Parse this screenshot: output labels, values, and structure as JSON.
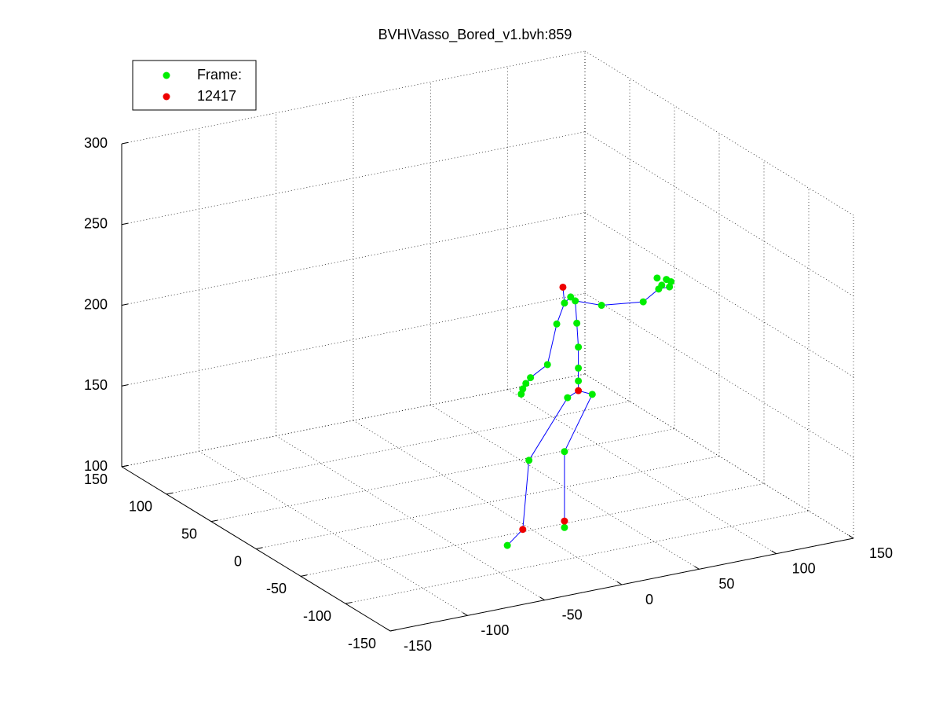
{
  "chart_data": {
    "type": "scatter3d",
    "title": "BVH\\Vasso_Bored_v1.bvh:859",
    "xlim": [
      -150,
      150
    ],
    "xticks": [
      -150,
      -100,
      -50,
      0,
      50,
      100,
      150
    ],
    "ylim": [
      -150,
      150
    ],
    "yticks": [
      -150,
      -100,
      -50,
      0,
      50,
      100,
      150
    ],
    "zlim": [
      100,
      300
    ],
    "zticks": [
      100,
      150,
      200,
      250,
      300
    ],
    "grid": true,
    "legend": "upper left",
    "series": [
      {
        "name": "Frame:",
        "color": "#00ee00",
        "x": [
          15,
          19,
          22,
          39,
          66,
          76,
          75,
          81,
          84,
          83,
          78,
          10,
          4,
          -7,
          -10,
          -12,
          -13,
          23,
          24,
          24,
          24,
          33,
          17,
          -8,
          15,
          -22,
          15
        ],
        "y": [
          -60,
          -60,
          -60,
          -60,
          -60,
          -60,
          -60,
          -60,
          -60,
          -60,
          -60,
          -60,
          -60,
          -60,
          -60,
          -60,
          -60,
          -60,
          -60,
          -60,
          -60,
          -60,
          -60,
          -60,
          -60,
          -60,
          -60
        ],
        "z": [
          241,
          244,
          241,
          235,
          232,
          238,
          245,
          243,
          241,
          238,
          240,
          229,
          205,
          199,
          196,
          193,
          190,
          227,
          212,
          199,
          191,
          181,
          182,
          148,
          149,
          98,
          102
        ]
      },
      {
        "name": "12417",
        "color": "#ee0000",
        "x": [
          14,
          24,
          -12,
          15
        ],
        "y": [
          -60,
          -60,
          -60,
          -60
        ],
        "z": [
          251,
          185,
          106,
          106
        ]
      }
    ],
    "bones": [
      {
        "color": "#0000ff",
        "x": [
          24,
          17,
          -8,
          -12,
          -22
        ],
        "y": [
          -60,
          -60,
          -60,
          -60,
          -60
        ],
        "z": [
          185,
          182,
          148,
          106,
          98
        ]
      },
      {
        "color": "#0000ff",
        "x": [
          24,
          33,
          15,
          15,
          15
        ],
        "y": [
          -60,
          -60,
          -60,
          -60,
          -60
        ],
        "z": [
          185,
          181,
          149,
          106,
          102
        ]
      },
      {
        "color": "#0000ff",
        "x": [
          24,
          24,
          24,
          24,
          23,
          22,
          19,
          15,
          14
        ],
        "y": [
          -60,
          -60,
          -60,
          -60,
          -60,
          -60,
          -60,
          -60,
          -60
        ],
        "z": [
          185,
          191,
          199,
          212,
          227,
          241,
          244,
          241,
          251
        ]
      },
      {
        "color": "#0000ff",
        "x": [
          22,
          39,
          66,
          76,
          83
        ],
        "y": [
          -60,
          -60,
          -60,
          -60,
          -60
        ],
        "z": [
          241,
          235,
          232,
          238,
          238
        ]
      },
      {
        "color": "#0000ff",
        "x": [
          15,
          10,
          4,
          -7,
          -13
        ],
        "y": [
          -60,
          -60,
          -60,
          -60,
          -60
        ],
        "z": [
          241,
          229,
          205,
          199,
          190
        ]
      }
    ]
  }
}
